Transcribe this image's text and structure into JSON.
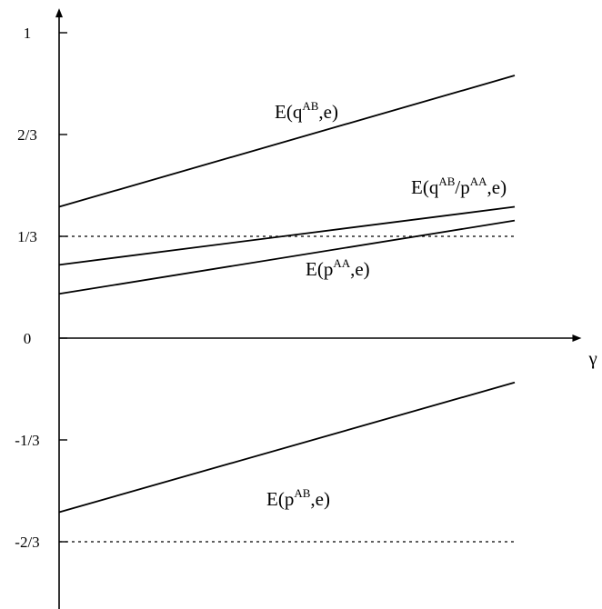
{
  "chart_data": {
    "type": "line",
    "xlabel": "γ",
    "ylabel": "",
    "y_tick_labels": [
      "1",
      "2/3",
      "1/3",
      "0",
      "-1/3",
      "-2/3"
    ],
    "y_ticks": [
      1,
      0.6667,
      0.3333,
      0,
      -0.3333,
      -0.6667
    ],
    "ylim": [
      -0.95,
      1.08
    ],
    "xlim": [
      0,
      1.72
    ],
    "grid": false,
    "legend": "none",
    "series": [
      {
        "name": "E(q^AB,e)",
        "label_base": "E(q",
        "label_sup": "AB",
        "label_end": ",e)",
        "x": [
          0,
          1.5
        ],
        "values": [
          0.43,
          0.86
        ]
      },
      {
        "name": "E(q^AB/p^AA,e)",
        "label_base": "E(q",
        "label_sup": "AB",
        "label_mid": "/p",
        "label_sup2": "AA",
        "label_end": ",e)",
        "x": [
          0,
          1.5
        ],
        "values": [
          0.24,
          0.43
        ]
      },
      {
        "name": "E(p^AA,e)",
        "label_base": "E(p",
        "label_sup": "AA",
        "label_end": ",e)",
        "x": [
          0,
          1.5
        ],
        "values": [
          0.145,
          0.385
        ]
      },
      {
        "name": "E(p^AB,e)",
        "label_base": "E(p",
        "label_sup": "AB",
        "label_end": ",e)",
        "x": [
          0,
          1.5
        ],
        "values": [
          -0.57,
          -0.145
        ]
      }
    ],
    "reference_lines": [
      {
        "y": 0.3333,
        "style": "dotted"
      },
      {
        "y": -0.6667,
        "style": "dotted"
      }
    ]
  }
}
